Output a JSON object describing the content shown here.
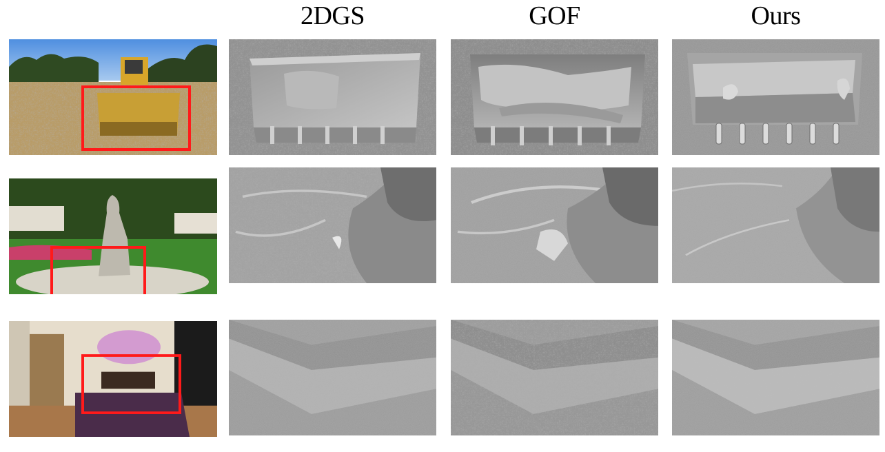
{
  "columns": [
    {
      "id": "input",
      "label": ""
    },
    {
      "id": "2dgs",
      "label": "2DGS"
    },
    {
      "id": "gof",
      "label": "GOF"
    },
    {
      "id": "ours",
      "label": "Ours"
    }
  ],
  "rows": [
    {
      "scene": "bulldozer"
    },
    {
      "scene": "statue"
    },
    {
      "scene": "bonsai"
    }
  ],
  "colors": {
    "highlight_box": "#ff1a1a",
    "mesh_gray": "#a9a9a9"
  }
}
